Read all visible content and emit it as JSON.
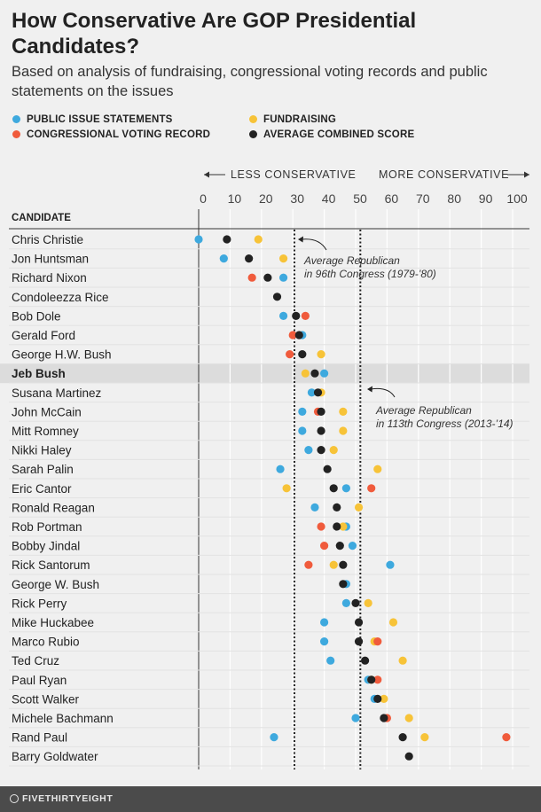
{
  "title": "How Conservative Are GOP Presidential Candidates?",
  "subtitle": "Based on analysis of fundraising, congressional voting records and public statements on the issues",
  "legend": [
    {
      "key": "public",
      "label": "PUBLIC ISSUE STATEMENTS",
      "color": "#3ea9de"
    },
    {
      "key": "fund",
      "label": "FUNDRAISING",
      "color": "#f7c338"
    },
    {
      "key": "vote",
      "label": "CONGRESSIONAL VOTING RECORD",
      "color": "#f05b3c"
    },
    {
      "key": "avg",
      "label": "AVERAGE COMBINED SCORE",
      "color": "#222222"
    }
  ],
  "axis": {
    "less_label": "LESS CONSERVATIVE",
    "more_label": "MORE CONSERVATIVE",
    "column_header": "CANDIDATE"
  },
  "footer": {
    "brand": "FIVETHIRTYEIGHT"
  },
  "chart_data": {
    "type": "scatter",
    "xlim": [
      0,
      100
    ],
    "x_ticks": [
      0,
      10,
      20,
      30,
      40,
      50,
      60,
      70,
      80,
      90,
      100
    ],
    "grid": true,
    "highlight": "Jeb Bush",
    "reference_lines": [
      {
        "value": 30.5,
        "label_line1": "Average Republican",
        "label_line2": "in 96th Congress (1979-’80)"
      },
      {
        "value": 51.5,
        "label_line1": "Average Republican",
        "label_line2": "in 113th Congress (2013-’14)"
      }
    ],
    "candidates": [
      {
        "name": "Chris Christie",
        "public": 0,
        "fund": 19,
        "vote": null,
        "avg": 9
      },
      {
        "name": "Jon Huntsman",
        "public": 8,
        "fund": 27,
        "vote": null,
        "avg": 16
      },
      {
        "name": "Richard Nixon",
        "public": 27,
        "fund": null,
        "vote": 17,
        "avg": 22
      },
      {
        "name": "Condoleezza Rice",
        "public": null,
        "fund": null,
        "vote": null,
        "avg": 25
      },
      {
        "name": "Bob Dole",
        "public": 27,
        "fund": null,
        "vote": 34,
        "avg": 31
      },
      {
        "name": "Gerald Ford",
        "public": 33,
        "fund": null,
        "vote": 30,
        "avg": 32
      },
      {
        "name": "George H.W. Bush",
        "public": null,
        "fund": 39,
        "vote": 29,
        "avg": 33
      },
      {
        "name": "Jeb Bush",
        "public": 40,
        "fund": 34,
        "vote": null,
        "avg": 37
      },
      {
        "name": "Susana Martinez",
        "public": 36,
        "fund": 39,
        "vote": null,
        "avg": 38
      },
      {
        "name": "John McCain",
        "public": 33,
        "fund": 46,
        "vote": 38,
        "avg": 39
      },
      {
        "name": "Mitt Romney",
        "public": 33,
        "fund": 46,
        "vote": null,
        "avg": 39
      },
      {
        "name": "Nikki Haley",
        "public": 35,
        "fund": 43,
        "vote": null,
        "avg": 39
      },
      {
        "name": "Sarah Palin",
        "public": 26,
        "fund": 57,
        "vote": null,
        "avg": 41
      },
      {
        "name": "Eric Cantor",
        "public": 47,
        "fund": 28,
        "vote": 55,
        "avg": 43
      },
      {
        "name": "Ronald Reagan",
        "public": 37,
        "fund": 51,
        "vote": null,
        "avg": 44
      },
      {
        "name": "Rob Portman",
        "public": 47,
        "fund": 46,
        "vote": 39,
        "avg": 44
      },
      {
        "name": "Bobby Jindal",
        "public": 49,
        "fund": null,
        "vote": 40,
        "avg": 45
      },
      {
        "name": "Rick Santorum",
        "public": 61,
        "fund": 43,
        "vote": 35,
        "avg": 46
      },
      {
        "name": "George W. Bush",
        "public": 47,
        "fund": null,
        "vote": null,
        "avg": 46
      },
      {
        "name": "Rick Perry",
        "public": 47,
        "fund": 54,
        "vote": null,
        "avg": 50
      },
      {
        "name": "Mike Huckabee",
        "public": 40,
        "fund": 62,
        "vote": null,
        "avg": 51
      },
      {
        "name": "Marco Rubio",
        "public": 40,
        "fund": 56,
        "vote": 57,
        "avg": 51
      },
      {
        "name": "Ted Cruz",
        "public": 42,
        "fund": 65,
        "vote": null,
        "avg": 53
      },
      {
        "name": "Paul Ryan",
        "public": 54,
        "fund": 55,
        "vote": 57,
        "avg": 55
      },
      {
        "name": "Scott Walker",
        "public": 56,
        "fund": 59,
        "vote": null,
        "avg": 57
      },
      {
        "name": "Michele Bachmann",
        "public": 50,
        "fund": 67,
        "vote": 60,
        "avg": 59
      },
      {
        "name": "Rand Paul",
        "public": 24,
        "fund": 72,
        "vote": 98,
        "avg": 65
      },
      {
        "name": "Barry Goldwater",
        "public": null,
        "fund": null,
        "vote": null,
        "avg": 67
      }
    ]
  }
}
